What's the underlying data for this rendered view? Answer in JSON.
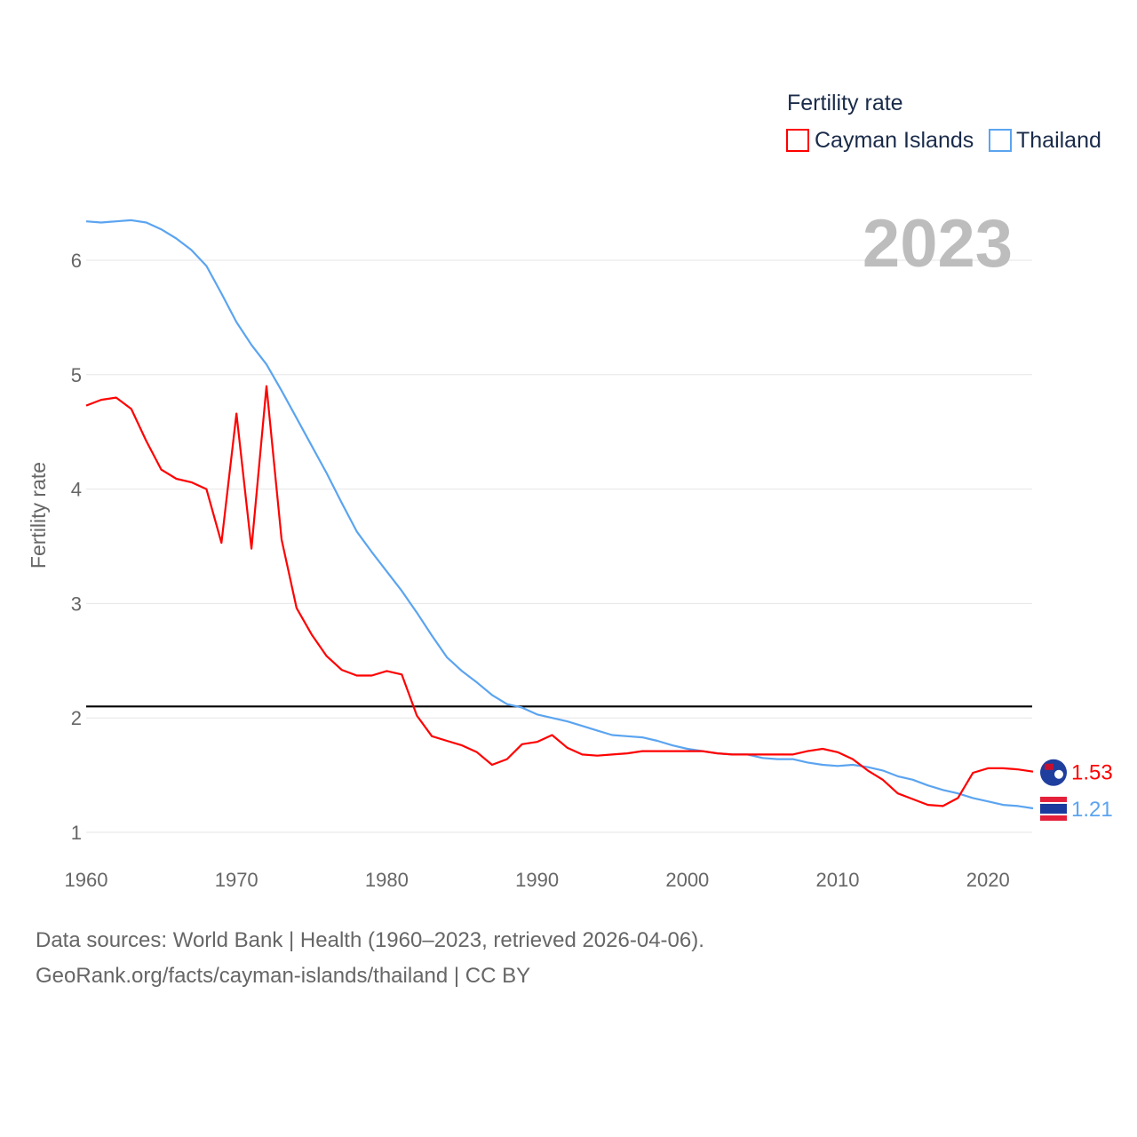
{
  "chart_data": {
    "type": "line",
    "title": "Fertility rate",
    "year_label": "2023",
    "xlabel": "",
    "ylabel": "Fertility rate",
    "xlim": [
      1960,
      2023
    ],
    "ylim": [
      1,
      6.35
    ],
    "xticks": [
      1960,
      1970,
      1980,
      1990,
      2000,
      2010,
      2020
    ],
    "yticks": [
      1,
      2,
      3,
      4,
      5,
      6
    ],
    "grid": true,
    "legend_placement": "top-right",
    "reference_line": {
      "value": 2.1,
      "color": "#000000"
    },
    "x": [
      1960,
      1961,
      1962,
      1963,
      1964,
      1965,
      1966,
      1967,
      1968,
      1969,
      1970,
      1971,
      1972,
      1973,
      1974,
      1975,
      1976,
      1977,
      1978,
      1979,
      1980,
      1981,
      1982,
      1983,
      1984,
      1985,
      1986,
      1987,
      1988,
      1989,
      1990,
      1991,
      1992,
      1993,
      1994,
      1995,
      1996,
      1997,
      1998,
      1999,
      2000,
      2001,
      2002,
      2003,
      2004,
      2005,
      2006,
      2007,
      2008,
      2009,
      2010,
      2011,
      2012,
      2013,
      2014,
      2015,
      2016,
      2017,
      2018,
      2019,
      2020,
      2021,
      2022,
      2023
    ],
    "series": [
      {
        "name": "Cayman Islands",
        "color": "#ff0000",
        "end_label": "1.53",
        "values": [
          4.73,
          4.78,
          4.8,
          4.7,
          4.42,
          4.17,
          4.09,
          4.06,
          4.0,
          3.53,
          4.66,
          3.48,
          4.9,
          3.56,
          2.96,
          2.73,
          2.54,
          2.42,
          2.37,
          2.37,
          2.41,
          2.38,
          2.02,
          1.84,
          1.8,
          1.76,
          1.7,
          1.59,
          1.64,
          1.77,
          1.79,
          1.85,
          1.74,
          1.68,
          1.67,
          1.68,
          1.69,
          1.71,
          1.71,
          1.71,
          1.71,
          1.71,
          1.69,
          1.68,
          1.68,
          1.68,
          1.68,
          1.68,
          1.71,
          1.73,
          1.7,
          1.64,
          1.54,
          1.46,
          1.34,
          1.29,
          1.24,
          1.23,
          1.3,
          1.52,
          1.56,
          1.56,
          1.55,
          1.53
        ]
      },
      {
        "name": "Thailand",
        "color": "#5ba4f0",
        "end_label": "1.21",
        "values": [
          6.34,
          6.33,
          6.34,
          6.35,
          6.33,
          6.27,
          6.19,
          6.09,
          5.95,
          5.71,
          5.46,
          5.26,
          5.09,
          4.86,
          4.62,
          4.38,
          4.14,
          3.88,
          3.63,
          3.45,
          3.28,
          3.11,
          2.92,
          2.72,
          2.53,
          2.41,
          2.31,
          2.2,
          2.12,
          2.09,
          2.03,
          2.0,
          1.97,
          1.93,
          1.89,
          1.85,
          1.84,
          1.83,
          1.8,
          1.76,
          1.73,
          1.71,
          1.69,
          1.68,
          1.68,
          1.65,
          1.64,
          1.64,
          1.61,
          1.59,
          1.58,
          1.59,
          1.57,
          1.54,
          1.49,
          1.46,
          1.41,
          1.37,
          1.34,
          1.3,
          1.27,
          1.24,
          1.23,
          1.21
        ]
      }
    ]
  },
  "footer": {
    "line1": "Data sources: World Bank | Health (1960–2023, retrieved 2026-04-06).",
    "line2": "GeoRank.org/facts/cayman-islands/thailand | CC BY"
  }
}
